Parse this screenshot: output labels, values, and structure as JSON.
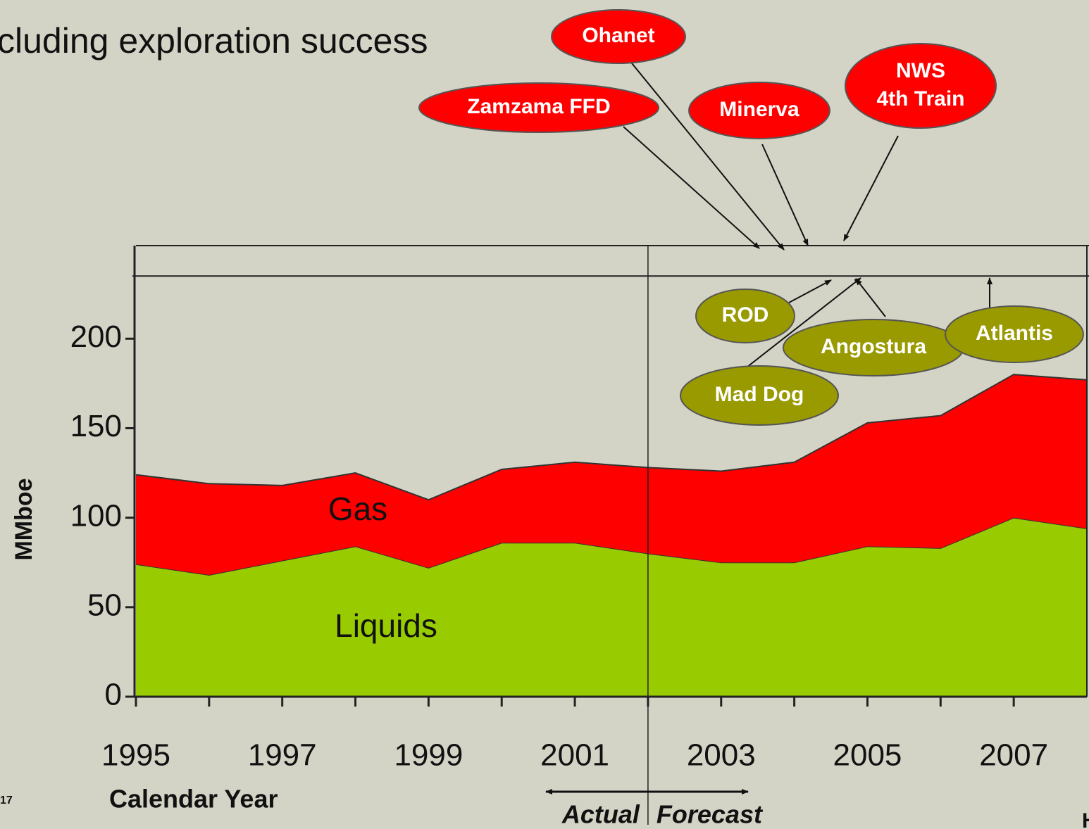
{
  "title": "cluding exploration success",
  "page_number": "17",
  "corner_text": "H",
  "chart_data": {
    "type": "area",
    "stacked": true,
    "x": [
      1995,
      1996,
      1997,
      1998,
      1999,
      2000,
      2001,
      2002,
      2003,
      2004,
      2005,
      2006,
      2007,
      2008
    ],
    "series": [
      {
        "name": "Liquids",
        "color": "#99cc00",
        "values": [
          74,
          68,
          76,
          84,
          72,
          86,
          86,
          80,
          75,
          75,
          84,
          83,
          100,
          94
        ]
      },
      {
        "name": "Gas",
        "color": "#ff0000",
        "values": [
          50,
          51,
          42,
          41,
          38,
          41,
          45,
          48,
          51,
          56,
          69,
          74,
          80,
          83
        ]
      }
    ],
    "xlim": [
      1995,
      2008
    ],
    "ylim": [
      0,
      252
    ],
    "xticks": [
      1995,
      1997,
      1999,
      2001,
      2003,
      2005,
      2007
    ],
    "xminor_ticks": [
      1996,
      1998,
      2000,
      2002,
      2004,
      2006
    ],
    "yticks": [
      0,
      50,
      100,
      150,
      200
    ],
    "ylabel": "MMboe",
    "xlabel": "Calendar Year",
    "reference_line": 235,
    "divider": {
      "x": 2002,
      "left_label": "Actual",
      "right_label": "Forecast"
    },
    "annotations": [
      {
        "lines": [
          "Zamzama FFD"
        ],
        "color": "#ff0000"
      },
      {
        "lines": [
          "Ohanet"
        ],
        "color": "#ff0000"
      },
      {
        "lines": [
          "Minerva"
        ],
        "color": "#ff0000"
      },
      {
        "lines": [
          "NWS",
          "4th Train"
        ],
        "color": "#ff0000"
      },
      {
        "lines": [
          "ROD"
        ],
        "color": "#999900"
      },
      {
        "lines": [
          "Angostura"
        ],
        "color": "#999900"
      },
      {
        "lines": [
          "Atlantis"
        ],
        "color": "#999900"
      },
      {
        "lines": [
          "Mad Dog"
        ],
        "color": "#999900"
      }
    ]
  }
}
